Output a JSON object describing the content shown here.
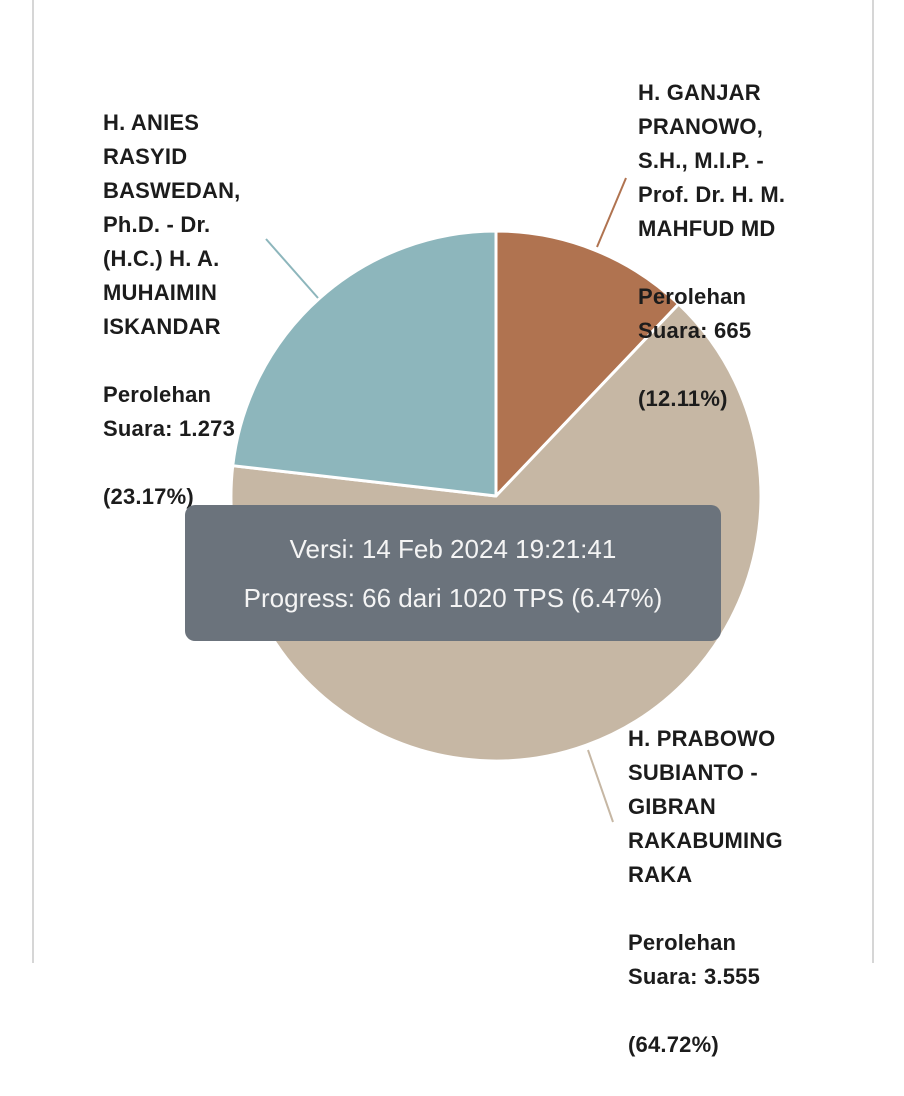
{
  "chart_data": {
    "type": "pie",
    "start_angle": "12 o'clock, clockwise",
    "slices": [
      {
        "name": "H. GANJAR PRANOWO, S.H., M.I.P. - Prof. Dr. H. M. MAHFUD MD",
        "value_label": "Perolehan Suara: 665",
        "percent_label": "(12.11%)",
        "votes": 665,
        "percent": 12.11,
        "color": "#b07350"
      },
      {
        "name": "H. PRABOWO SUBIANTO - GIBRAN RAKABUMING RAKA",
        "value_label": "Perolehan Suara: 3.555",
        "percent_label": "(64.72%)",
        "votes": 3555,
        "percent": 64.72,
        "color": "#c6b7a4"
      },
      {
        "name": "H. ANIES RASYID BASWEDAN, Ph.D. - Dr. (H.C.) H. A. MUHAIMIN ISKANDAR",
        "value_label": "Perolehan Suara: 1.273",
        "percent_label": "(23.17%)",
        "votes": 1273,
        "percent": 23.17,
        "color": "#8db6bc"
      }
    ]
  },
  "tooltip": {
    "version": "Versi: 14 Feb 2024 19:21:41",
    "progress": "Progress: 66 dari 1020 TPS (6.47%)"
  }
}
